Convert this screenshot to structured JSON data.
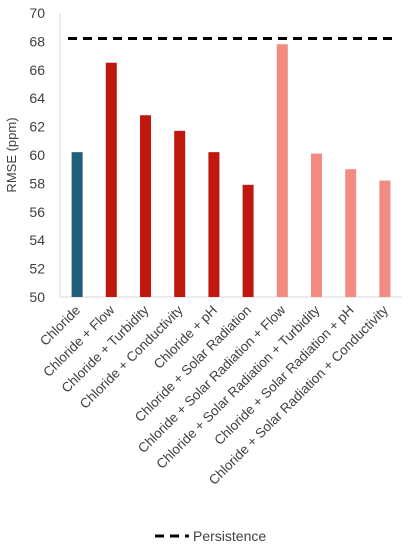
{
  "chart_data": {
    "type": "bar",
    "ylabel": "RMSE (ppm)",
    "ylim": [
      50,
      70
    ],
    "ytick_step": 2,
    "categories": [
      "Chloride",
      "Chloride + Flow",
      "Chloride + Turbidity",
      "Chloride + Conductivity",
      "Chloride + pH",
      "Chloride + Solar Radiation",
      "Chloride + Solar Radiation + Flow",
      "Chloride + Solar Radiation + Turbidity",
      "Chloride + Solar Radiation + pH",
      "Chloride + Solar Radiation + Conductivity"
    ],
    "values": [
      60.2,
      66.5,
      62.8,
      61.7,
      60.2,
      57.9,
      67.8,
      60.1,
      59.0,
      58.2
    ],
    "bar_colors": [
      "#1f5f7a",
      "#c0180f",
      "#c0180f",
      "#c0180f",
      "#c0180f",
      "#c0180f",
      "#f28b82",
      "#f28b82",
      "#f28b82",
      "#f28b82"
    ],
    "reference_line": {
      "name": "Persistence",
      "value": 68.2,
      "style": "dashed",
      "color": "#000000"
    },
    "grid": false,
    "legend": {
      "position": "bottom",
      "entries": [
        "Persistence"
      ]
    }
  }
}
